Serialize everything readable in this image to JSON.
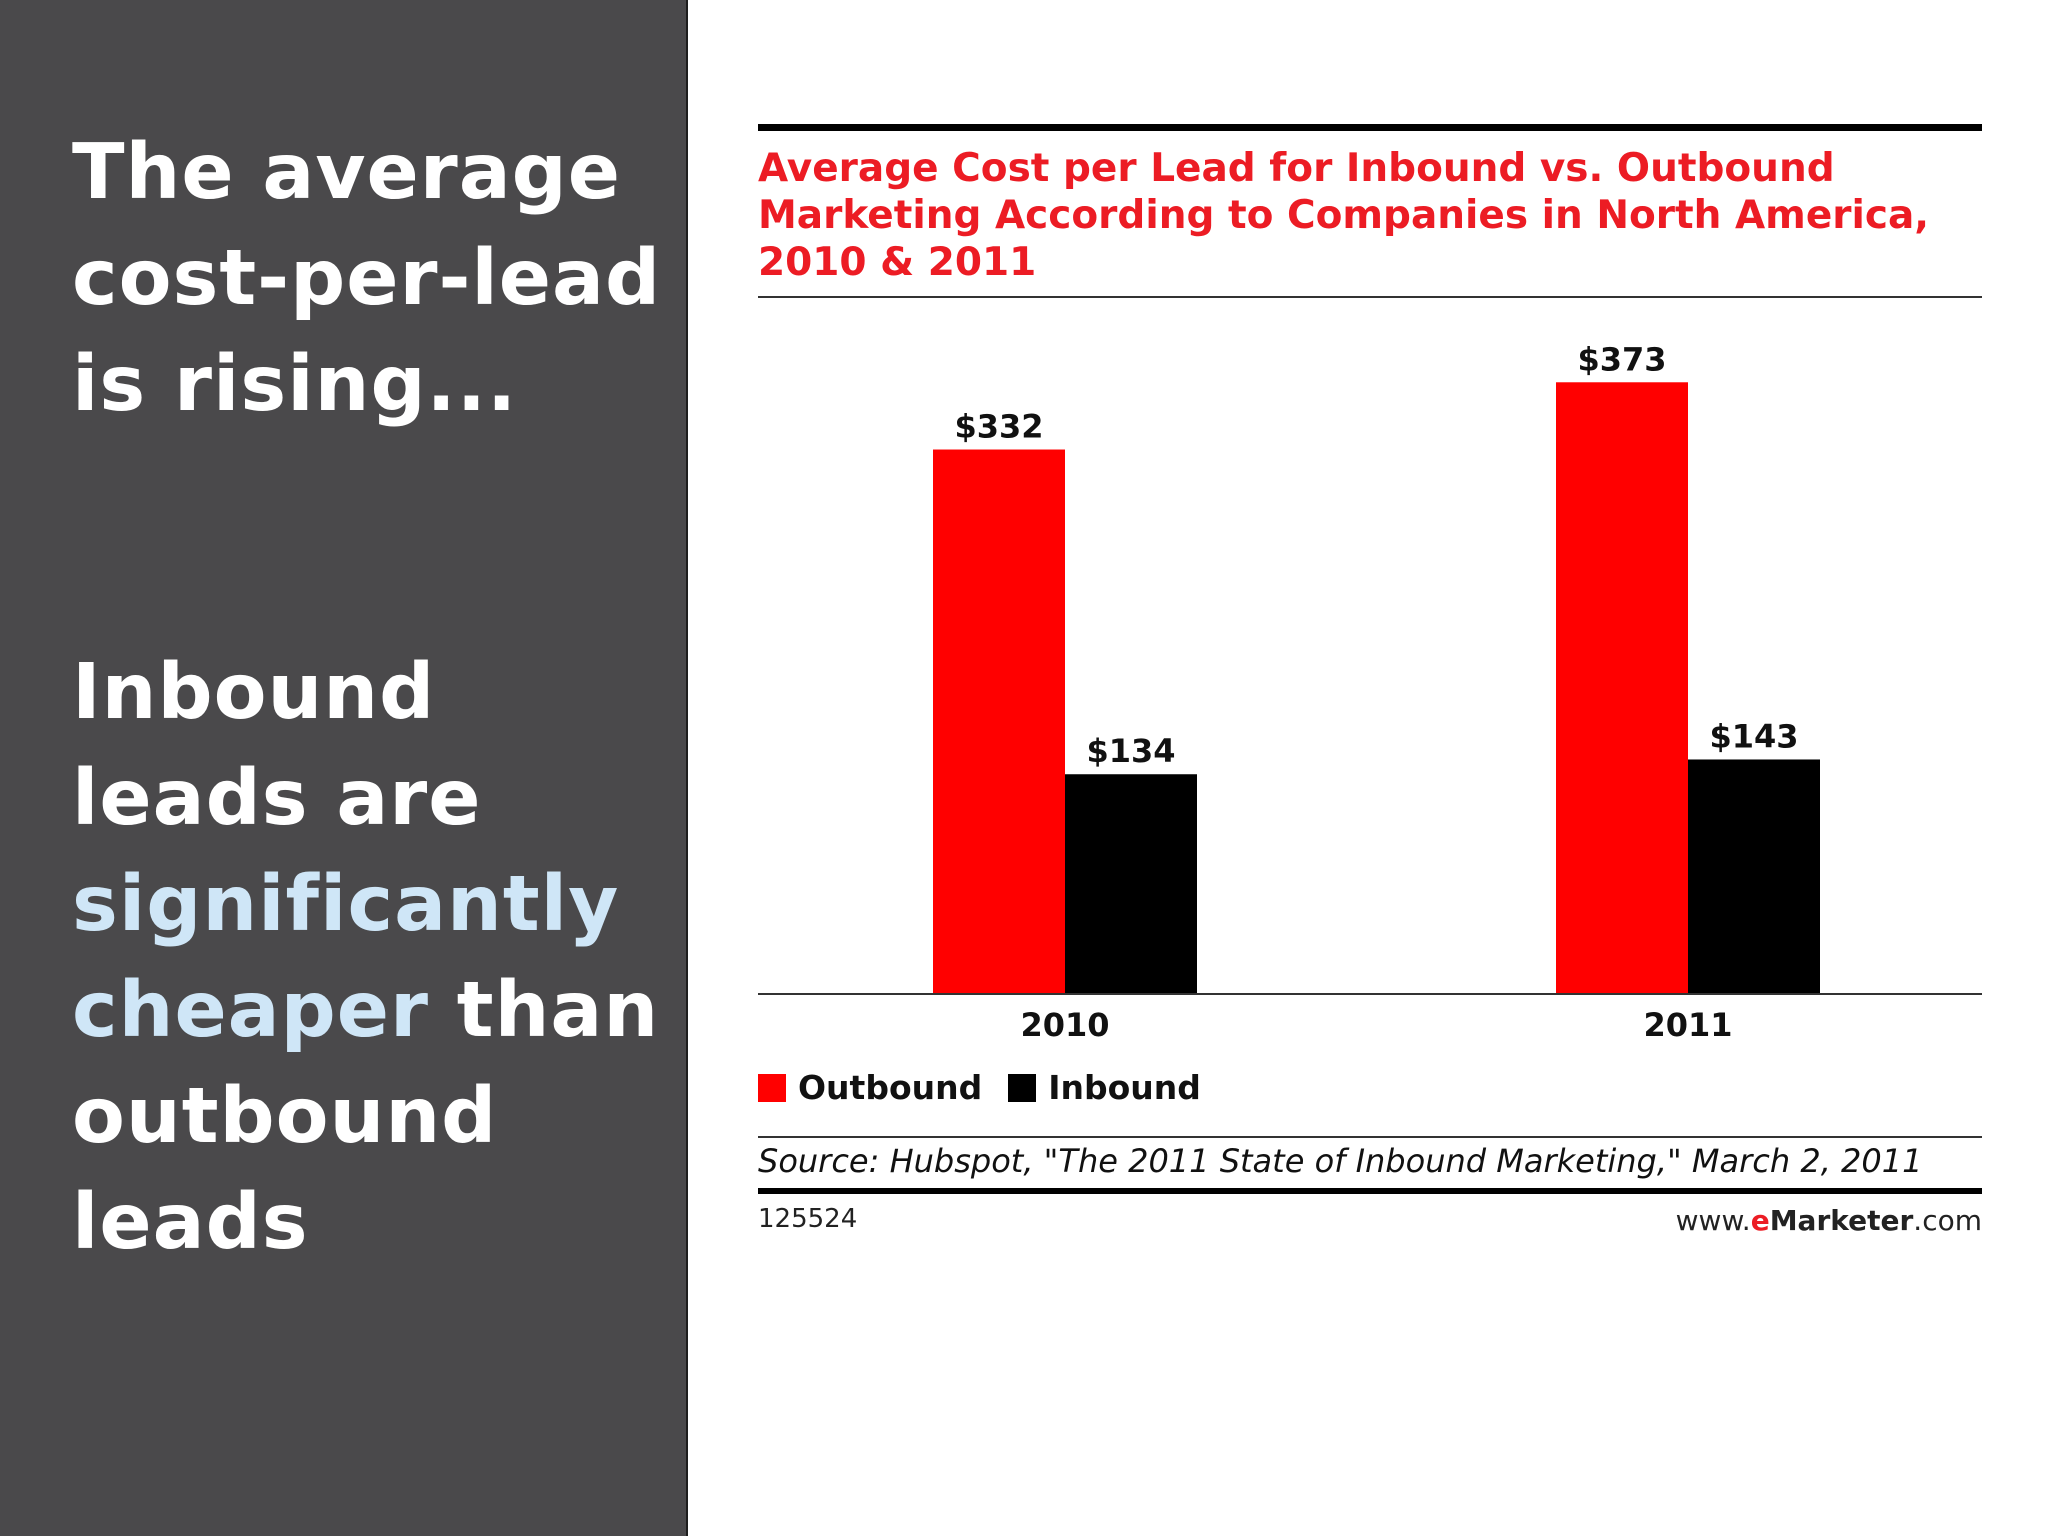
{
  "left_panel": {
    "headline_1": [
      "The average",
      "cost-per-lead",
      "is rising..."
    ],
    "headline_2_parts": {
      "line1": "Inbound",
      "line2": "leads are",
      "line3_highlight": "significantly",
      "line4_highlight": "cheaper",
      "line4_rest": " than",
      "line5": "outbound",
      "line6": "leads"
    },
    "highlight_color": "#cfe6f7"
  },
  "chart_data": {
    "type": "bar",
    "title": "Average Cost per Lead for Inbound vs. Outbound Marketing According to Companies in North America, 2010 & 2011",
    "categories": [
      "2010",
      "2011"
    ],
    "series": [
      {
        "name": "Outbound",
        "values": [
          332,
          373
        ],
        "labels": [
          "$332",
          "$373"
        ],
        "color": "#ff0000"
      },
      {
        "name": "Inbound",
        "values": [
          134,
          143
        ],
        "labels": [
          "$134",
          "$143"
        ],
        "color": "#000000"
      }
    ],
    "ylim": [
      0,
      400
    ],
    "grid": false,
    "legend_position": "bottom-left",
    "source": "Source: Hubspot, \"The 2011 State of Inbound Marketing,\" March 2, 2011",
    "chart_id": "125524",
    "brand": {
      "prefix": "www.",
      "e": "e",
      "marketer": "Marketer",
      "suffix": ".com"
    }
  }
}
